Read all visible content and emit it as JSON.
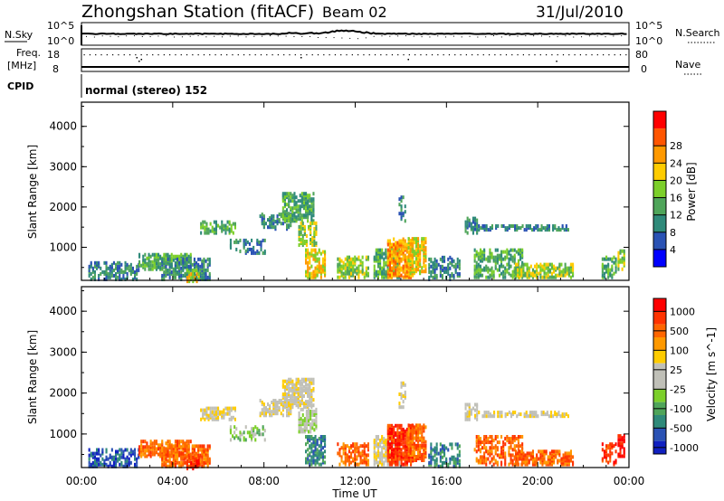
{
  "header": {
    "station": "Zhongshan Station (fitACF)",
    "beam": "Beam 02",
    "date": "31/Jul/2010"
  },
  "strips": {
    "nsky_label": "N.Sky",
    "nsky_ticks": [
      "10^5",
      "10^0"
    ],
    "nsearch_label": "N.Search",
    "nsearch_ticks": [
      "10^5",
      "10^0"
    ],
    "freq_label_1": "Freq.",
    "freq_label_2": "[MHz]",
    "freq_ticks": [
      "18",
      "8"
    ],
    "nave_label": "Nave",
    "nave_ticks": [
      "80",
      "0"
    ],
    "cpid_label": "CPID",
    "cpid_text": "normal (stereo) 152"
  },
  "chart_data": [
    {
      "type": "heatmap",
      "name": "power",
      "ylabel": "Slant Range [km]",
      "yticks": [
        "1000",
        "2000",
        "3000",
        "4000"
      ],
      "ylim": [
        180,
        4600
      ],
      "colorbar_label": "Power [dB]",
      "colorbar_ticks": [
        "4",
        "8",
        "12",
        "16",
        "20",
        "24",
        "28"
      ],
      "colors": [
        "#0000ff",
        "#2a52b4",
        "#2f8a7a",
        "#4fa55a",
        "#7ccf2a",
        "#ffcc00",
        "#ff9900",
        "#ff5500",
        "#ff0000"
      ]
    },
    {
      "type": "heatmap",
      "name": "velocity",
      "ylabel": "Slant Range [km]",
      "yticks": [
        "1000",
        "2000",
        "3000",
        "4000"
      ],
      "ylim": [
        180,
        4600
      ],
      "colorbar_label": "Velocity [m s^-1]",
      "colorbar_ticks": [
        "1000",
        "500",
        "100",
        "25",
        "-25",
        "-100",
        "-500",
        "-1000"
      ],
      "colors": [
        "#1020c0",
        "#2a52b4",
        "#2f8a7a",
        "#4fa55a",
        "#7ccf2a",
        "#c0c0b8",
        "#c0c0b8",
        "#ffcc00",
        "#ff9900",
        "#ff6600",
        "#ff3300",
        "#ff0000"
      ]
    }
  ],
  "xaxis": {
    "label": "Time UT",
    "ticks": [
      "00:00",
      "04:00",
      "08:00",
      "12:00",
      "16:00",
      "20:00",
      "00:00"
    ]
  }
}
